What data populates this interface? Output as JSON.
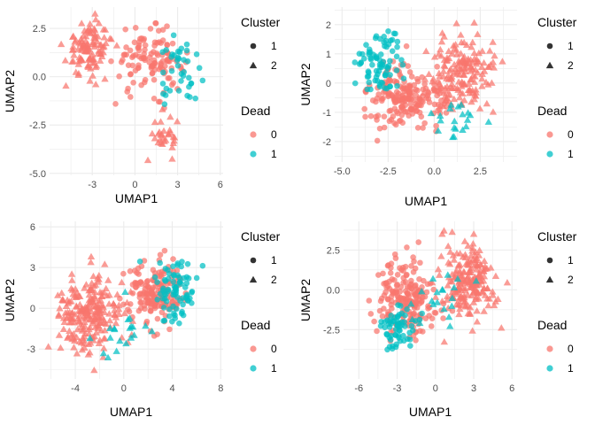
{
  "colors": {
    "dead_0": "#F8766D",
    "dead_1": "#00BFC4",
    "cluster_key": "#333333",
    "grid": "#EBEBEB",
    "tick": "#4D4D4D"
  },
  "legend": {
    "cluster_title": "Cluster",
    "cluster_items": [
      {
        "label": "1",
        "shape": "circle"
      },
      {
        "label": "2",
        "shape": "triangle"
      }
    ],
    "dead_title": "Dead",
    "dead_items": [
      {
        "label": "0",
        "color": "#F8766D"
      },
      {
        "label": "1",
        "color": "#00BFC4"
      }
    ]
  },
  "chart_data": [
    {
      "type": "scatter",
      "xlabel": "UMAP1",
      "ylabel": "UMAP2",
      "xlim": [
        -6.0,
        6.2
      ],
      "ylim": [
        -5.1,
        3.6
      ],
      "xticks": [
        -3,
        0,
        3,
        6
      ],
      "yticks": [
        -5.0,
        -2.5,
        0.0,
        2.5
      ],
      "xtick_labels": [
        "-3",
        "0",
        "3",
        "6"
      ],
      "ytick_labels": [
        "-5.0",
        "-2.5",
        "0.0",
        "2.5"
      ],
      "minor_grid": true,
      "point_count": 300,
      "groups": [
        {
          "cluster": "2",
          "dead": "0",
          "center": [
            -3.2,
            1.5
          ],
          "spread": [
            1.5,
            1.3
          ],
          "n": 110
        },
        {
          "cluster": "2",
          "dead": "0",
          "center": [
            2.2,
            -3.2
          ],
          "spread": [
            0.9,
            1.0
          ],
          "n": 30
        },
        {
          "cluster": "1",
          "dead": "0",
          "center": [
            1.0,
            0.8
          ],
          "spread": [
            2.2,
            1.4
          ],
          "n": 120
        },
        {
          "cluster": "1",
          "dead": "1",
          "center": [
            3.2,
            0.2
          ],
          "spread": [
            1.3,
            1.6
          ],
          "n": 40
        }
      ]
    },
    {
      "type": "scatter",
      "xlabel": "UMAP1",
      "ylabel": "UMAP2",
      "xlim": [
        -5.4,
        4.5
      ],
      "ylim": [
        -2.7,
        2.6
      ],
      "xticks": [
        -5.0,
        -2.5,
        0.0,
        2.5
      ],
      "yticks": [
        -2,
        -1,
        0,
        1,
        2
      ],
      "xtick_labels": [
        "-5.0",
        "-2.5",
        "0.0",
        "2.5"
      ],
      "ytick_labels": [
        "-2",
        "-1",
        "0",
        "1",
        "2"
      ],
      "minor_grid": true,
      "point_count": 470,
      "groups": [
        {
          "cluster": "2",
          "dead": "0",
          "center": [
            1.6,
            0.3
          ],
          "spread": [
            1.6,
            1.2
          ],
          "n": 170
        },
        {
          "cluster": "1",
          "dead": "0",
          "center": [
            -1.5,
            -0.5
          ],
          "spread": [
            1.8,
            1.0
          ],
          "n": 200
        },
        {
          "cluster": "1",
          "dead": "1",
          "center": [
            -3.0,
            0.6
          ],
          "spread": [
            1.2,
            1.0
          ],
          "n": 80
        },
        {
          "cluster": "2",
          "dead": "1",
          "center": [
            1.0,
            -1.3
          ],
          "spread": [
            1.5,
            0.7
          ],
          "n": 20
        }
      ]
    },
    {
      "type": "scatter",
      "xlabel": "UMAP1",
      "ylabel": "UMAP2",
      "xlim": [
        -7.0,
        8.2
      ],
      "ylim": [
        -5.2,
        6.4
      ],
      "xticks": [
        -4,
        0,
        4,
        8
      ],
      "yticks": [
        -3,
        0,
        3,
        6
      ],
      "xtick_labels": [
        "-4",
        "0",
        "4",
        "8"
      ],
      "ytick_labels": [
        "-3",
        "0",
        "3",
        "6"
      ],
      "minor_grid": true,
      "point_count": 500,
      "groups": [
        {
          "cluster": "2",
          "dead": "0",
          "center": [
            -3.0,
            -0.5
          ],
          "spread": [
            2.3,
            2.6
          ],
          "n": 230
        },
        {
          "cluster": "1",
          "dead": "0",
          "center": [
            2.5,
            1.0
          ],
          "spread": [
            2.2,
            2.4
          ],
          "n": 170
        },
        {
          "cluster": "1",
          "dead": "1",
          "center": [
            4.2,
            1.5
          ],
          "spread": [
            1.6,
            2.0
          ],
          "n": 80
        },
        {
          "cluster": "2",
          "dead": "1",
          "center": [
            0.0,
            -1.5
          ],
          "spread": [
            2.5,
            2.5
          ],
          "n": 20
        }
      ]
    },
    {
      "type": "scatter",
      "xlabel": "UMAP1",
      "ylabel": "UMAP2",
      "xlim": [
        -7.2,
        6.4
      ],
      "ylim": [
        -5.6,
        4.3
      ],
      "xticks": [
        -6,
        -3,
        0,
        3,
        6
      ],
      "yticks": [
        -2.5,
        0.0,
        2.5
      ],
      "xtick_labels": [
        "-6",
        "-3",
        "0",
        "3",
        "6"
      ],
      "ytick_labels": [
        "-2.5",
        "0.0",
        "2.5"
      ],
      "minor_grid": true,
      "point_count": 480,
      "groups": [
        {
          "cluster": "2",
          "dead": "0",
          "center": [
            2.6,
            0.5
          ],
          "spread": [
            1.9,
            2.2
          ],
          "n": 200
        },
        {
          "cluster": "1",
          "dead": "0",
          "center": [
            -2.2,
            -0.5
          ],
          "spread": [
            2.1,
            2.2
          ],
          "n": 200
        },
        {
          "cluster": "1",
          "dead": "1",
          "center": [
            -3.0,
            -2.5
          ],
          "spread": [
            1.4,
            1.3
          ],
          "n": 60
        },
        {
          "cluster": "2",
          "dead": "1",
          "center": [
            0.2,
            -0.5
          ],
          "spread": [
            1.8,
            2.0
          ],
          "n": 20
        }
      ]
    }
  ]
}
